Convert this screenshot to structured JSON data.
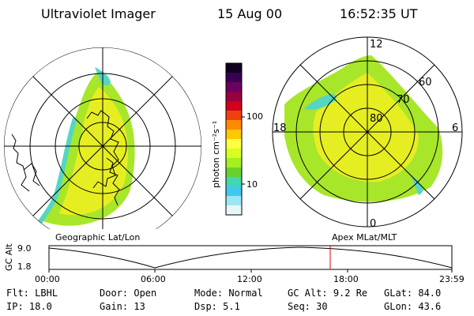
{
  "header": {
    "title": "Ultraviolet Imager",
    "date": "15 Aug 00",
    "time": "16:52:35 UT"
  },
  "colorbar": {
    "unit_label": "photon cm⁻²s⁻¹",
    "ticks": [
      "100",
      "10"
    ],
    "colors": [
      "#110020",
      "#3a0050",
      "#6a0060",
      "#9a0040",
      "#d2001a",
      "#f04010",
      "#ff8a00",
      "#ffc800",
      "#ffff40",
      "#d8ff20",
      "#a6f020",
      "#6ad030",
      "#40d8b0",
      "#40c8f0",
      "#9ce6f4",
      "#e4f8fa"
    ]
  },
  "polar_plot": {
    "lat_labels": [
      "80",
      "70",
      "60"
    ],
    "mlt_labels": {
      "top": "12",
      "right": "6",
      "bottom": "0",
      "left": "18"
    },
    "colors": {
      "yellow": "#e6ee22",
      "green": "#a8e62a",
      "cyan": "#55d6c4"
    }
  },
  "projection_labels": {
    "left": "Geographic Lat/Lon",
    "right": "Apex MLat/MLT"
  },
  "timeline": {
    "ylabel": "GC Alt",
    "yticks": [
      "9.0",
      "1.8"
    ],
    "xticks": [
      "00:00",
      "06:00",
      "12:00",
      "18:00",
      "23:59"
    ],
    "marker_color": "#e00000"
  },
  "info_rows": [
    [
      {
        "label": "Flt:",
        "value": "LBHL"
      },
      {
        "label": "Door:",
        "value": "Open"
      },
      {
        "label": "Mode:",
        "value": "Normal"
      },
      {
        "label": "GC Alt:",
        "value": "9.2 Re"
      },
      {
        "label": "GLat:",
        "value": "84.0"
      }
    ],
    [
      {
        "label": "IP:",
        "value": "18.0"
      },
      {
        "label": "Gain:",
        "value": "13"
      },
      {
        "label": "Dsp:",
        "value": "5.1"
      },
      {
        "label": "Seq:",
        "value": "30"
      },
      {
        "label": "GLon:",
        "value": "43.6"
      }
    ]
  ]
}
